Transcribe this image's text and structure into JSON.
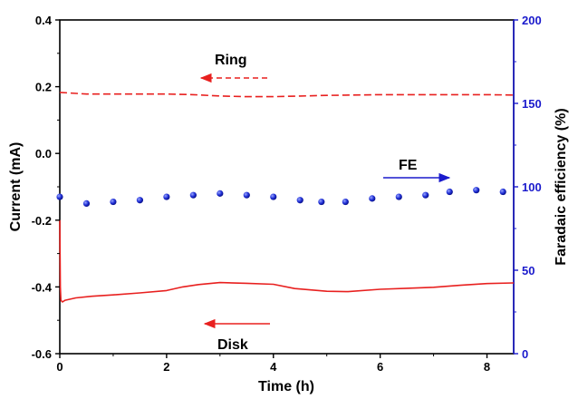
{
  "chart_data": {
    "type": "line",
    "xlabel": "Time (h)",
    "ylabel": "Current (mA)",
    "y2label": "Faradaic efficiency (%)",
    "xlim": [
      0,
      8.5
    ],
    "ylim": [
      -0.6,
      0.4
    ],
    "y2lim": [
      0,
      200
    ],
    "x_ticks": [
      "0",
      "2",
      "4",
      "6",
      "8"
    ],
    "y_ticks": [
      "-0.6",
      "-0.4",
      "-0.2",
      "0.0",
      "0.2",
      "0.4"
    ],
    "y2_ticks": [
      "0",
      "50",
      "100",
      "150",
      "200"
    ],
    "grid": false,
    "colors": {
      "ring": "#e8201f",
      "disk": "#e8201f",
      "fe": "#1a1acc",
      "right_axis": "#1a1acc"
    },
    "series": [
      {
        "name": "Ring",
        "axis": "left",
        "style": "dashed",
        "x": [
          0.0,
          0.5,
          1.0,
          1.5,
          2.0,
          2.5,
          3.0,
          3.5,
          4.0,
          4.5,
          5.0,
          5.5,
          6.0,
          6.5,
          7.0,
          7.5,
          8.0,
          8.5
        ],
        "y": [
          0.183,
          0.178,
          0.178,
          0.178,
          0.178,
          0.176,
          0.172,
          0.17,
          0.17,
          0.172,
          0.174,
          0.175,
          0.176,
          0.176,
          0.176,
          0.176,
          0.176,
          0.175
        ]
      },
      {
        "name": "Disk",
        "axis": "left",
        "style": "solid",
        "x": [
          0.0,
          0.005,
          0.01,
          0.02,
          0.05,
          0.1,
          0.3,
          0.6,
          1.0,
          1.5,
          2.0,
          2.3,
          2.6,
          3.0,
          3.5,
          4.0,
          4.4,
          5.0,
          5.4,
          6.0,
          6.5,
          7.0,
          7.5,
          8.0,
          8.5
        ],
        "y": [
          -0.2,
          -0.3,
          -0.4,
          -0.44,
          -0.445,
          -0.44,
          -0.433,
          -0.428,
          -0.424,
          -0.418,
          -0.411,
          -0.4,
          -0.393,
          -0.387,
          -0.389,
          -0.392,
          -0.405,
          -0.413,
          -0.414,
          -0.407,
          -0.404,
          -0.401,
          -0.395,
          -0.39,
          -0.388
        ]
      },
      {
        "name": "FE",
        "axis": "right",
        "style": "points",
        "x": [
          0.0,
          0.5,
          1.0,
          1.5,
          2.0,
          2.5,
          3.0,
          3.5,
          4.0,
          4.5,
          4.9,
          5.35,
          5.85,
          6.35,
          6.85,
          7.3,
          7.8,
          8.3
        ],
        "y": [
          94,
          90,
          91,
          92,
          94,
          95,
          96,
          95,
          94,
          92,
          91,
          91,
          93,
          94,
          95,
          97,
          98,
          97
        ]
      }
    ],
    "annotations": [
      {
        "text": "Ring",
        "arrow": "left",
        "color": "#e8201f"
      },
      {
        "text": "Disk",
        "arrow": "left",
        "color": "#e8201f"
      },
      {
        "text": "FE",
        "arrow": "right",
        "color": "#1a1acc"
      }
    ]
  }
}
